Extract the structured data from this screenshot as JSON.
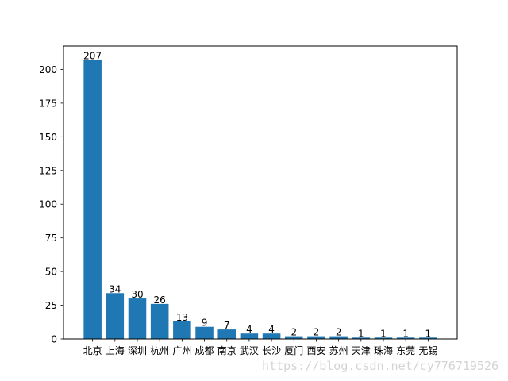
{
  "colors": {
    "bar": "#1f77b4",
    "axis": "#000000",
    "background": "#ffffff",
    "watermark": "#d4d4d4"
  },
  "watermark_text": "https://blog.csdn.net/cy776719526",
  "chart_data": {
    "type": "bar",
    "title": "",
    "xlabel": "",
    "ylabel": "",
    "categories": [
      "北京",
      "上海",
      "深圳",
      "杭州",
      "广州",
      "成都",
      "南京",
      "武汉",
      "长沙",
      "厦门",
      "西安",
      "苏州",
      "天津",
      "珠海",
      "东莞",
      "无锡"
    ],
    "values": [
      207,
      34,
      30,
      26,
      13,
      9,
      7,
      4,
      4,
      2,
      2,
      2,
      1,
      1,
      1,
      1
    ],
    "ylim": [
      0,
      217.35
    ],
    "yticks": [
      0,
      25,
      50,
      75,
      100,
      125,
      150,
      175,
      200
    ],
    "data_labels": true,
    "grid": false,
    "legend": "none"
  }
}
